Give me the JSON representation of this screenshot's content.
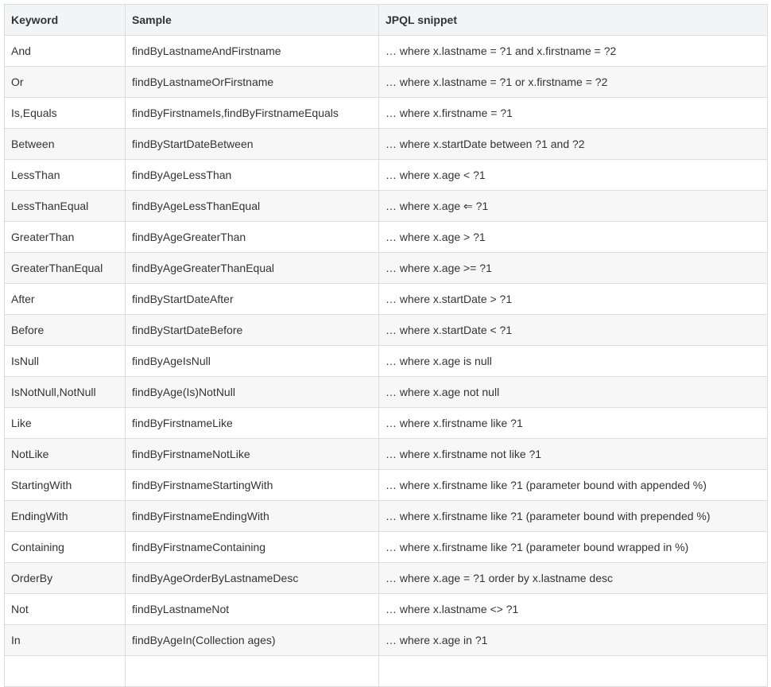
{
  "headers": [
    "Keyword",
    "Sample",
    "JPQL snippet"
  ],
  "rows": [
    [
      "And",
      "findByLastnameAndFirstname",
      "… where x.lastname = ?1 and x.firstname = ?2"
    ],
    [
      "Or",
      "findByLastnameOrFirstname",
      "… where x.lastname = ?1 or x.firstname = ?2"
    ],
    [
      "Is,Equals",
      "findByFirstnameIs,findByFirstnameEquals",
      "… where x.firstname = ?1"
    ],
    [
      "Between",
      "findByStartDateBetween",
      "… where x.startDate between ?1 and ?2"
    ],
    [
      "LessThan",
      "findByAgeLessThan",
      "… where x.age < ?1"
    ],
    [
      "LessThanEqual",
      "findByAgeLessThanEqual",
      "… where x.age ⇐ ?1"
    ],
    [
      "GreaterThan",
      "findByAgeGreaterThan",
      "… where x.age > ?1"
    ],
    [
      "GreaterThanEqual",
      "findByAgeGreaterThanEqual",
      "… where x.age >= ?1"
    ],
    [
      "After",
      "findByStartDateAfter",
      "… where x.startDate > ?1"
    ],
    [
      "Before",
      "findByStartDateBefore",
      "… where x.startDate < ?1"
    ],
    [
      "IsNull",
      "findByAgeIsNull",
      "… where x.age is null"
    ],
    [
      "IsNotNull,NotNull",
      "findByAge(Is)NotNull",
      "… where x.age not null"
    ],
    [
      "Like",
      "findByFirstnameLike",
      "… where x.firstname like ?1"
    ],
    [
      "NotLike",
      "findByFirstnameNotLike",
      "… where x.firstname not like ?1"
    ],
    [
      "StartingWith",
      "findByFirstnameStartingWith",
      "… where x.firstname like ?1 (parameter bound with appended %)"
    ],
    [
      "EndingWith",
      "findByFirstnameEndingWith",
      "… where x.firstname like ?1 (parameter bound with prepended %)"
    ],
    [
      "Containing",
      "findByFirstnameContaining",
      "… where x.firstname like ?1 (parameter bound wrapped in %)"
    ],
    [
      "OrderBy",
      "findByAgeOrderByLastnameDesc",
      "… where x.age = ?1 order by x.lastname desc"
    ],
    [
      "Not",
      "findByLastnameNot",
      "… where x.lastname <> ?1"
    ],
    [
      "In",
      "findByAgeIn(Collection ages)",
      "… where x.age in ?1"
    ],
    [
      "",
      "",
      ""
    ]
  ]
}
